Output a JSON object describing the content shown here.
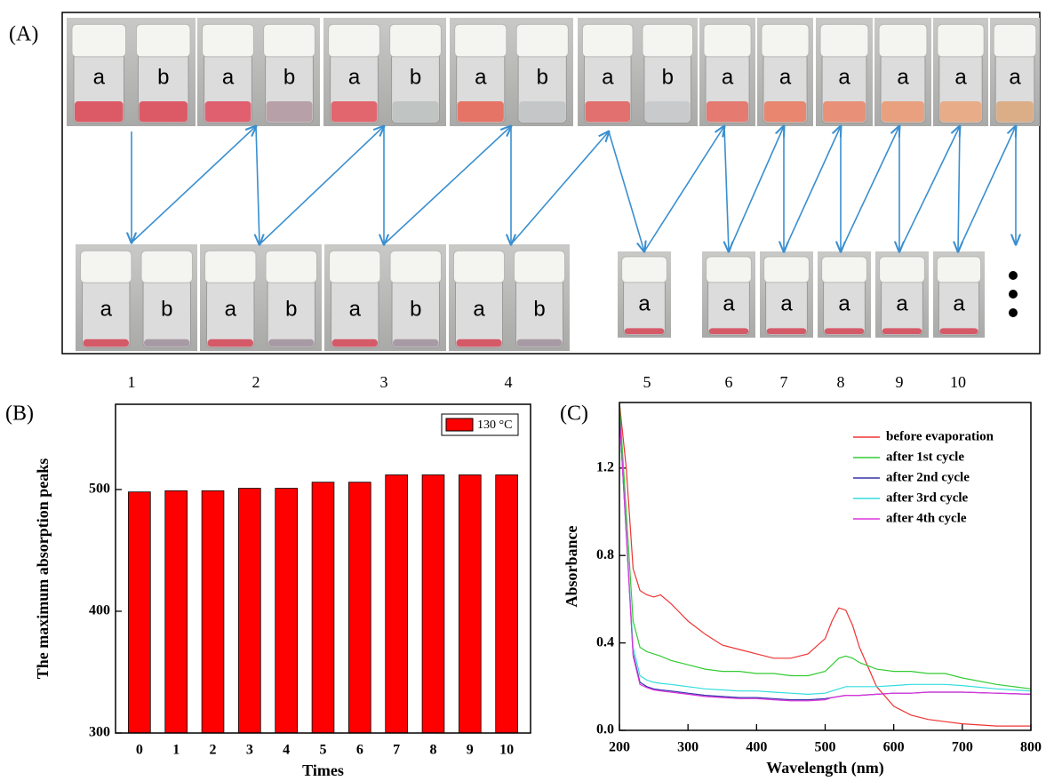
{
  "photo_panel": {
    "label": "(A)",
    "top": [
      [
        "a",
        "b"
      ],
      [
        "a",
        "b"
      ],
      [
        "a",
        "b"
      ],
      [
        "a",
        "b"
      ],
      [
        "a",
        "b"
      ],
      [
        "a"
      ],
      [
        "a"
      ],
      [
        "a"
      ],
      [
        "a"
      ],
      [
        "a"
      ],
      [
        "a"
      ]
    ],
    "bottom": [
      [
        "a",
        "b"
      ],
      [
        "a",
        "b"
      ],
      [
        "a",
        "b"
      ],
      [
        "a",
        "b"
      ],
      [
        "a"
      ],
      [
        "a"
      ],
      [
        "a"
      ],
      [
        "a"
      ],
      [
        "a"
      ],
      [
        "a"
      ]
    ],
    "steps": [
      1,
      2,
      3,
      4,
      5,
      6,
      7,
      8,
      9,
      10
    ]
  },
  "chart_data": [
    {
      "type": "bar",
      "panel_label": "(B)",
      "xlabel": "Times",
      "ylabel": "The maximum absorption peaks",
      "categories": [
        "0",
        "1",
        "2",
        "3",
        "4",
        "5",
        "6",
        "7",
        "8",
        "9",
        "10"
      ],
      "series": [
        {
          "name": "130 °C",
          "color": "#ff0000",
          "values": [
            498,
            499,
            499,
            501,
            501,
            506,
            506,
            512,
            512,
            512,
            512
          ]
        }
      ],
      "ylim": [
        300,
        570
      ],
      "yticks": [
        300,
        400,
        500
      ],
      "legend": "upper right"
    },
    {
      "type": "line",
      "panel_label": "(C)",
      "xlabel": "Wavelength (nm)",
      "ylabel": "Absorbance",
      "x": [
        200,
        210,
        220,
        230,
        240,
        250,
        260,
        275,
        300,
        325,
        350,
        375,
        400,
        425,
        450,
        475,
        500,
        510,
        520,
        530,
        540,
        550,
        575,
        600,
        625,
        650,
        675,
        700,
        750,
        800
      ],
      "series": [
        {
          "name": "before evaporation",
          "color": "#ee3333",
          "values": [
            1.5,
            1.2,
            0.74,
            0.64,
            0.62,
            0.61,
            0.62,
            0.58,
            0.5,
            0.44,
            0.39,
            0.37,
            0.35,
            0.33,
            0.33,
            0.35,
            0.42,
            0.5,
            0.56,
            0.55,
            0.48,
            0.38,
            0.2,
            0.11,
            0.07,
            0.05,
            0.04,
            0.03,
            0.02,
            0.02
          ]
        },
        {
          "name": "after 1st cycle",
          "color": "#33cc33",
          "values": [
            1.5,
            1.0,
            0.5,
            0.38,
            0.36,
            0.35,
            0.34,
            0.32,
            0.3,
            0.28,
            0.27,
            0.27,
            0.26,
            0.26,
            0.25,
            0.25,
            0.27,
            0.3,
            0.33,
            0.34,
            0.33,
            0.31,
            0.28,
            0.27,
            0.27,
            0.26,
            0.26,
            0.24,
            0.21,
            0.19
          ]
        },
        {
          "name": "after 2nd cycle",
          "color": "#3333aa",
          "values": [
            1.45,
            0.9,
            0.35,
            0.22,
            0.2,
            0.19,
            0.185,
            0.18,
            0.17,
            0.16,
            0.155,
            0.15,
            0.15,
            0.145,
            0.14,
            0.14,
            0.145,
            0.15,
            0.155,
            0.16,
            0.16,
            0.16,
            0.165,
            0.17,
            0.17,
            0.175,
            0.175,
            0.175,
            0.17,
            0.165
          ]
        },
        {
          "name": "after 3rd cycle",
          "color": "#33dddd",
          "values": [
            1.45,
            0.9,
            0.38,
            0.25,
            0.23,
            0.22,
            0.215,
            0.21,
            0.2,
            0.19,
            0.185,
            0.18,
            0.18,
            0.175,
            0.17,
            0.165,
            0.17,
            0.18,
            0.19,
            0.2,
            0.2,
            0.2,
            0.2,
            0.205,
            0.21,
            0.21,
            0.21,
            0.205,
            0.19,
            0.18
          ]
        },
        {
          "name": "after 4th cycle",
          "color": "#dd33dd",
          "values": [
            1.45,
            0.9,
            0.34,
            0.21,
            0.195,
            0.185,
            0.18,
            0.175,
            0.165,
            0.155,
            0.15,
            0.145,
            0.145,
            0.14,
            0.135,
            0.135,
            0.14,
            0.15,
            0.155,
            0.16,
            0.16,
            0.16,
            0.165,
            0.17,
            0.17,
            0.175,
            0.175,
            0.175,
            0.17,
            0.165
          ]
        }
      ],
      "xlim": [
        200,
        800
      ],
      "xticks": [
        200,
        300,
        400,
        500,
        600,
        700,
        800
      ],
      "ylim": [
        0,
        1.5
      ],
      "yticks": [
        {
          "value": 0,
          "label": "0.0"
        },
        0.4,
        0.8,
        1.2
      ],
      "legend": "upper right"
    }
  ]
}
